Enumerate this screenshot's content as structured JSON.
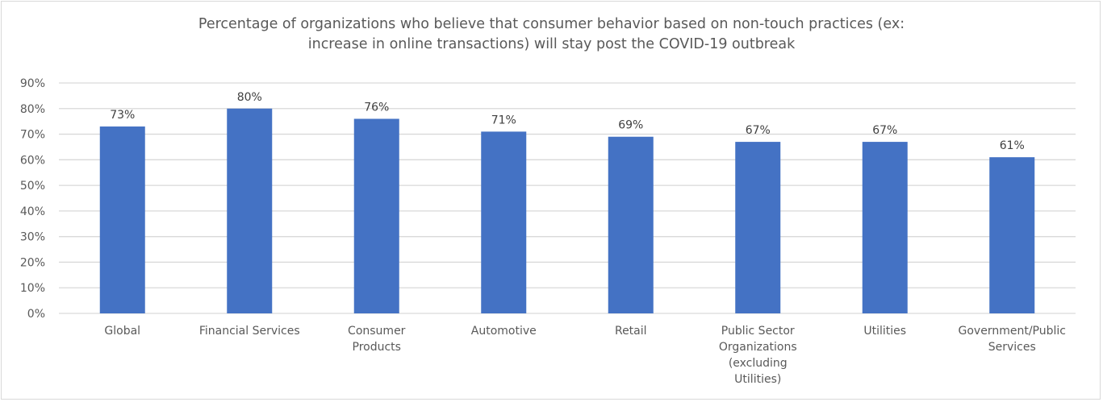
{
  "chart_data": {
    "type": "bar",
    "title_lines": [
      "Percentage of organizations who believe that consumer behavior based on non-touch practices (ex:",
      "increase in online transactions) will stay post the COVID-19 outbreak"
    ],
    "categories": [
      [
        "Global"
      ],
      [
        "Financial Services"
      ],
      [
        "Consumer",
        "Products"
      ],
      [
        "Automotive"
      ],
      [
        "Retail"
      ],
      [
        "Public Sector",
        "Organizations",
        "(excluding",
        "Utilities)"
      ],
      [
        "Utilities"
      ],
      [
        "Government/Public",
        "Services"
      ]
    ],
    "values": [
      73,
      80,
      76,
      71,
      69,
      67,
      67,
      61
    ],
    "data_labels": [
      "73%",
      "80%",
      "76%",
      "71%",
      "69%",
      "67%",
      "67%",
      "61%"
    ],
    "yticks": [
      "0%",
      "10%",
      "20%",
      "30%",
      "40%",
      "50%",
      "60%",
      "70%",
      "80%",
      "90%"
    ],
    "ylim": [
      0,
      90
    ],
    "xlabel": "",
    "ylabel": "",
    "grid": true,
    "legend": "none",
    "bar_color": "#4472c4",
    "grid_color": "#d9d9d9"
  }
}
